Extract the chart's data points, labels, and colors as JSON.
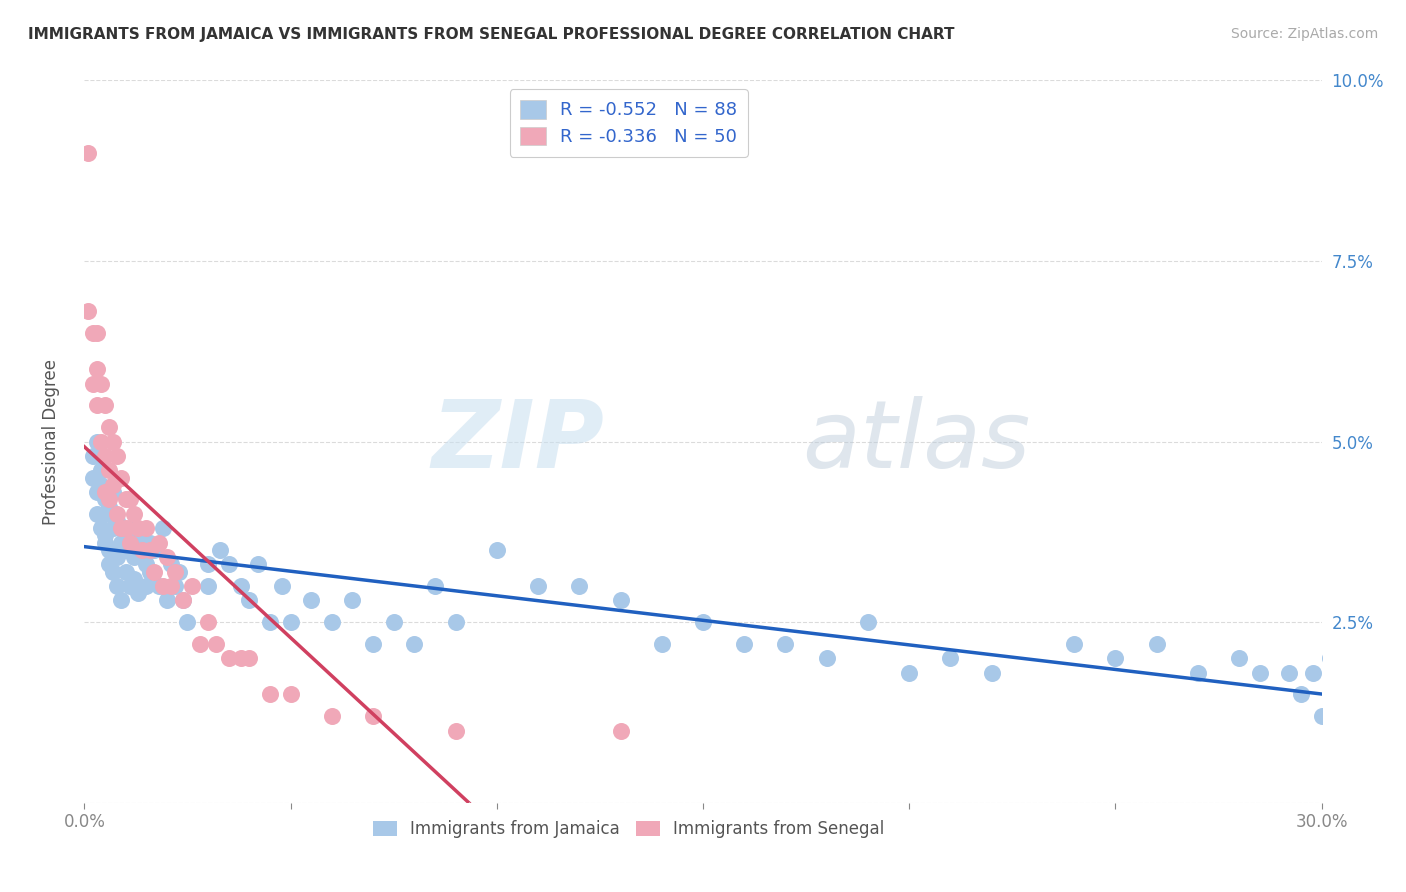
{
  "title": "IMMIGRANTS FROM JAMAICA VS IMMIGRANTS FROM SENEGAL PROFESSIONAL DEGREE CORRELATION CHART",
  "source": "Source: ZipAtlas.com",
  "ylabel": "Professional Degree",
  "xlim": [
    0,
    0.3
  ],
  "ylim": [
    0,
    0.1
  ],
  "jamaica_color": "#a8c8e8",
  "senegal_color": "#f0a8b8",
  "jamaica_line_color": "#2060c0",
  "senegal_line_color": "#d04060",
  "r_jamaica": -0.552,
  "n_jamaica": 88,
  "r_senegal": -0.336,
  "n_senegal": 50,
  "jamaica_x": [
    0.002,
    0.002,
    0.003,
    0.003,
    0.003,
    0.004,
    0.004,
    0.004,
    0.005,
    0.005,
    0.005,
    0.005,
    0.006,
    0.006,
    0.006,
    0.007,
    0.007,
    0.007,
    0.008,
    0.008,
    0.008,
    0.009,
    0.009,
    0.01,
    0.01,
    0.011,
    0.011,
    0.012,
    0.012,
    0.013,
    0.013,
    0.014,
    0.015,
    0.015,
    0.016,
    0.016,
    0.017,
    0.018,
    0.019,
    0.02,
    0.021,
    0.022,
    0.023,
    0.024,
    0.025,
    0.03,
    0.03,
    0.033,
    0.035,
    0.038,
    0.04,
    0.042,
    0.045,
    0.048,
    0.05,
    0.055,
    0.06,
    0.065,
    0.07,
    0.075,
    0.08,
    0.085,
    0.09,
    0.1,
    0.11,
    0.12,
    0.13,
    0.14,
    0.15,
    0.16,
    0.17,
    0.18,
    0.19,
    0.2,
    0.21,
    0.22,
    0.24,
    0.25,
    0.26,
    0.27,
    0.28,
    0.285,
    0.292,
    0.295,
    0.298,
    0.3,
    0.302,
    0.305
  ],
  "jamaica_y": [
    0.048,
    0.045,
    0.043,
    0.04,
    0.05,
    0.044,
    0.038,
    0.046,
    0.042,
    0.036,
    0.04,
    0.037,
    0.035,
    0.041,
    0.033,
    0.038,
    0.032,
    0.043,
    0.034,
    0.039,
    0.03,
    0.036,
    0.028,
    0.035,
    0.032,
    0.038,
    0.03,
    0.034,
    0.031,
    0.036,
    0.029,
    0.037,
    0.033,
    0.03,
    0.036,
    0.032,
    0.035,
    0.03,
    0.038,
    0.028,
    0.033,
    0.03,
    0.032,
    0.028,
    0.025,
    0.033,
    0.03,
    0.035,
    0.033,
    0.03,
    0.028,
    0.033,
    0.025,
    0.03,
    0.025,
    0.028,
    0.025,
    0.028,
    0.022,
    0.025,
    0.022,
    0.03,
    0.025,
    0.035,
    0.03,
    0.03,
    0.028,
    0.022,
    0.025,
    0.022,
    0.022,
    0.02,
    0.025,
    0.018,
    0.02,
    0.018,
    0.022,
    0.02,
    0.022,
    0.018,
    0.02,
    0.018,
    0.018,
    0.015,
    0.018,
    0.012,
    0.02,
    0.015
  ],
  "senegal_x": [
    0.001,
    0.001,
    0.002,
    0.002,
    0.003,
    0.003,
    0.003,
    0.004,
    0.004,
    0.005,
    0.005,
    0.005,
    0.006,
    0.006,
    0.006,
    0.007,
    0.007,
    0.008,
    0.008,
    0.009,
    0.009,
    0.01,
    0.01,
    0.011,
    0.011,
    0.012,
    0.013,
    0.014,
    0.015,
    0.016,
    0.017,
    0.018,
    0.019,
    0.02,
    0.021,
    0.022,
    0.024,
    0.026,
    0.028,
    0.03,
    0.032,
    0.035,
    0.038,
    0.04,
    0.045,
    0.05,
    0.06,
    0.07,
    0.09,
    0.13
  ],
  "senegal_y": [
    0.09,
    0.068,
    0.065,
    0.058,
    0.065,
    0.06,
    0.055,
    0.058,
    0.05,
    0.055,
    0.048,
    0.043,
    0.052,
    0.046,
    0.042,
    0.05,
    0.044,
    0.048,
    0.04,
    0.045,
    0.038,
    0.042,
    0.038,
    0.042,
    0.036,
    0.04,
    0.038,
    0.035,
    0.038,
    0.035,
    0.032,
    0.036,
    0.03,
    0.034,
    0.03,
    0.032,
    0.028,
    0.03,
    0.022,
    0.025,
    0.022,
    0.02,
    0.02,
    0.02,
    0.015,
    0.015,
    0.012,
    0.012,
    0.01,
    0.01
  ],
  "watermark_zip": "ZIP",
  "watermark_atlas": "atlas",
  "background_color": "#ffffff",
  "grid_color": "#cccccc"
}
